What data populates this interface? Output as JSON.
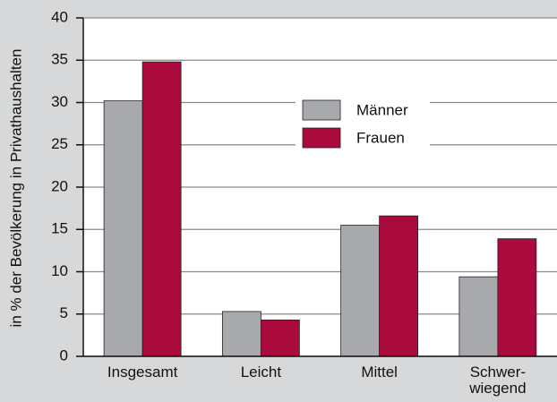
{
  "chart_data": {
    "type": "bar",
    "y_label": "in % der Bevölkerung in Privathaushalten",
    "categories": [
      "Insgesamt",
      "Leicht",
      "Mittel",
      "Schwer-\nwiegend"
    ],
    "series": [
      {
        "name": "Männer",
        "color": "#a7a9ac",
        "values": [
          30.2,
          5.3,
          15.5,
          9.4
        ]
      },
      {
        "name": "Frauen",
        "color": "#ab0a3d",
        "values": [
          34.8,
          4.3,
          16.6,
          13.9
        ]
      }
    ],
    "ylim": [
      0,
      40
    ],
    "yticks": [
      0,
      5,
      10,
      15,
      20,
      25,
      30,
      35,
      40
    ],
    "grid": true
  }
}
